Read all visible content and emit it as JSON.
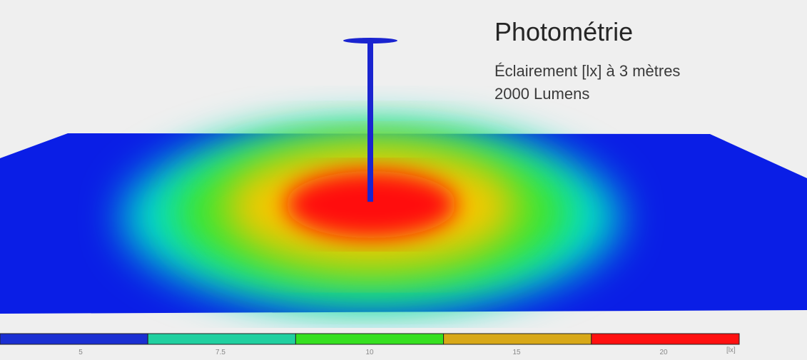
{
  "header": {
    "title": "Photométrie",
    "subtitle_line1": "Éclairement [lx] à 3 mètres",
    "subtitle_line2": "2000 Lumens"
  },
  "chart_data": {
    "type": "heatmap",
    "title": "Photométrie",
    "subtitle": [
      "Éclairement [lx] à 3 mètres",
      "2000 Lumens"
    ],
    "unit": "[lx]",
    "colorscale": [
      {
        "label": "5",
        "color": "#1a2fd2"
      },
      {
        "label": "7.5",
        "color": "#20d0a0"
      },
      {
        "label": "10",
        "color": "#36e020"
      },
      {
        "label": "15",
        "color": "#d8a818"
      },
      {
        "label": "20",
        "color": "#ff1010"
      }
    ],
    "zones": [
      {
        "level": 20,
        "color": "#ff0d0d"
      },
      {
        "level": 15,
        "color": "#f5c800"
      },
      {
        "level": 10,
        "color": "#3ee62a"
      },
      {
        "level": 7.5,
        "color": "#00dccd"
      },
      {
        "level": 5,
        "color": "#0a1ee6"
      }
    ]
  }
}
